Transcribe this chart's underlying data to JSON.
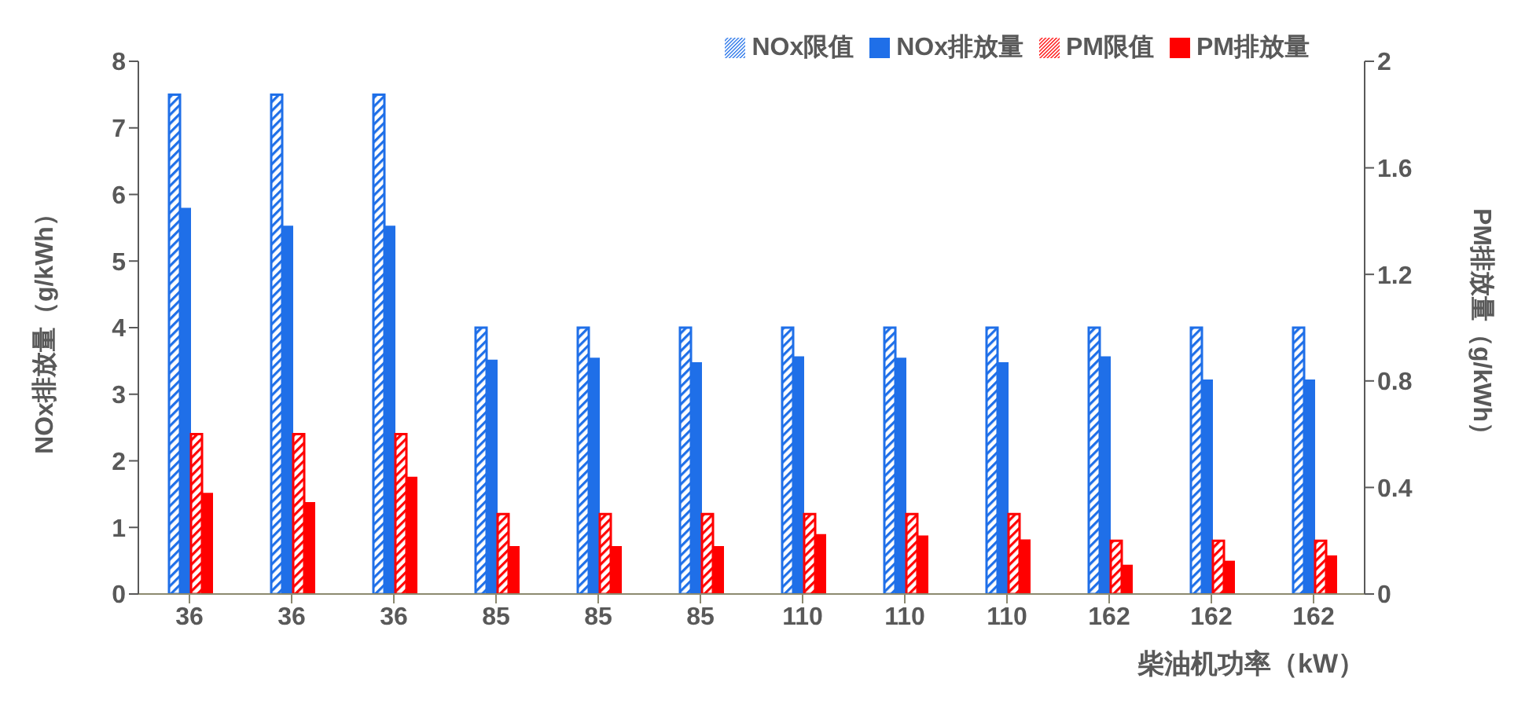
{
  "chart_data": {
    "type": "bar",
    "xlabel": "柴油机功率（kW）",
    "ylabel": "NOx排放量（g/kWh）",
    "y2label": "PM排放量（g/kWh）",
    "categories": [
      "36",
      "36",
      "36",
      "85",
      "85",
      "85",
      "110",
      "110",
      "110",
      "162",
      "162",
      "162"
    ],
    "series": [
      {
        "name": "NOx限值",
        "color": "#1f6fe8",
        "values": [
          7.5,
          7.5,
          7.5,
          4,
          4,
          4,
          4,
          4,
          4,
          4,
          4,
          4
        ]
      },
      {
        "name": "NOx排放量",
        "color": "#1f6fe8",
        "values": [
          5.8,
          5.53,
          5.53,
          3.52,
          3.55,
          3.48,
          3.57,
          3.55,
          3.48,
          3.57,
          3.22,
          3.22
        ]
      },
      {
        "name": "PM限值",
        "color": "#ff0000",
        "axis": "y2",
        "values": [
          0.6,
          0.6,
          0.6,
          0.3,
          0.3,
          0.3,
          0.3,
          0.3,
          0.3,
          0.2,
          0.2,
          0.2
        ]
      },
      {
        "name": "PM排放量",
        "color": "#ff0000",
        "axis": "y2",
        "values": [
          0.38,
          0.345,
          0.44,
          0.18,
          0.18,
          0.18,
          0.225,
          0.22,
          0.205,
          0.11,
          0.125,
          0.145
        ]
      }
    ],
    "ylim": [
      0,
      8
    ],
    "yticks": [
      0,
      1,
      2,
      3,
      4,
      5,
      6,
      7,
      8
    ],
    "y2lim": [
      0,
      2
    ],
    "y2ticks": [
      0,
      0.4,
      0.8,
      1.2,
      1.6,
      2
    ],
    "grid": false,
    "legend": "top right"
  }
}
